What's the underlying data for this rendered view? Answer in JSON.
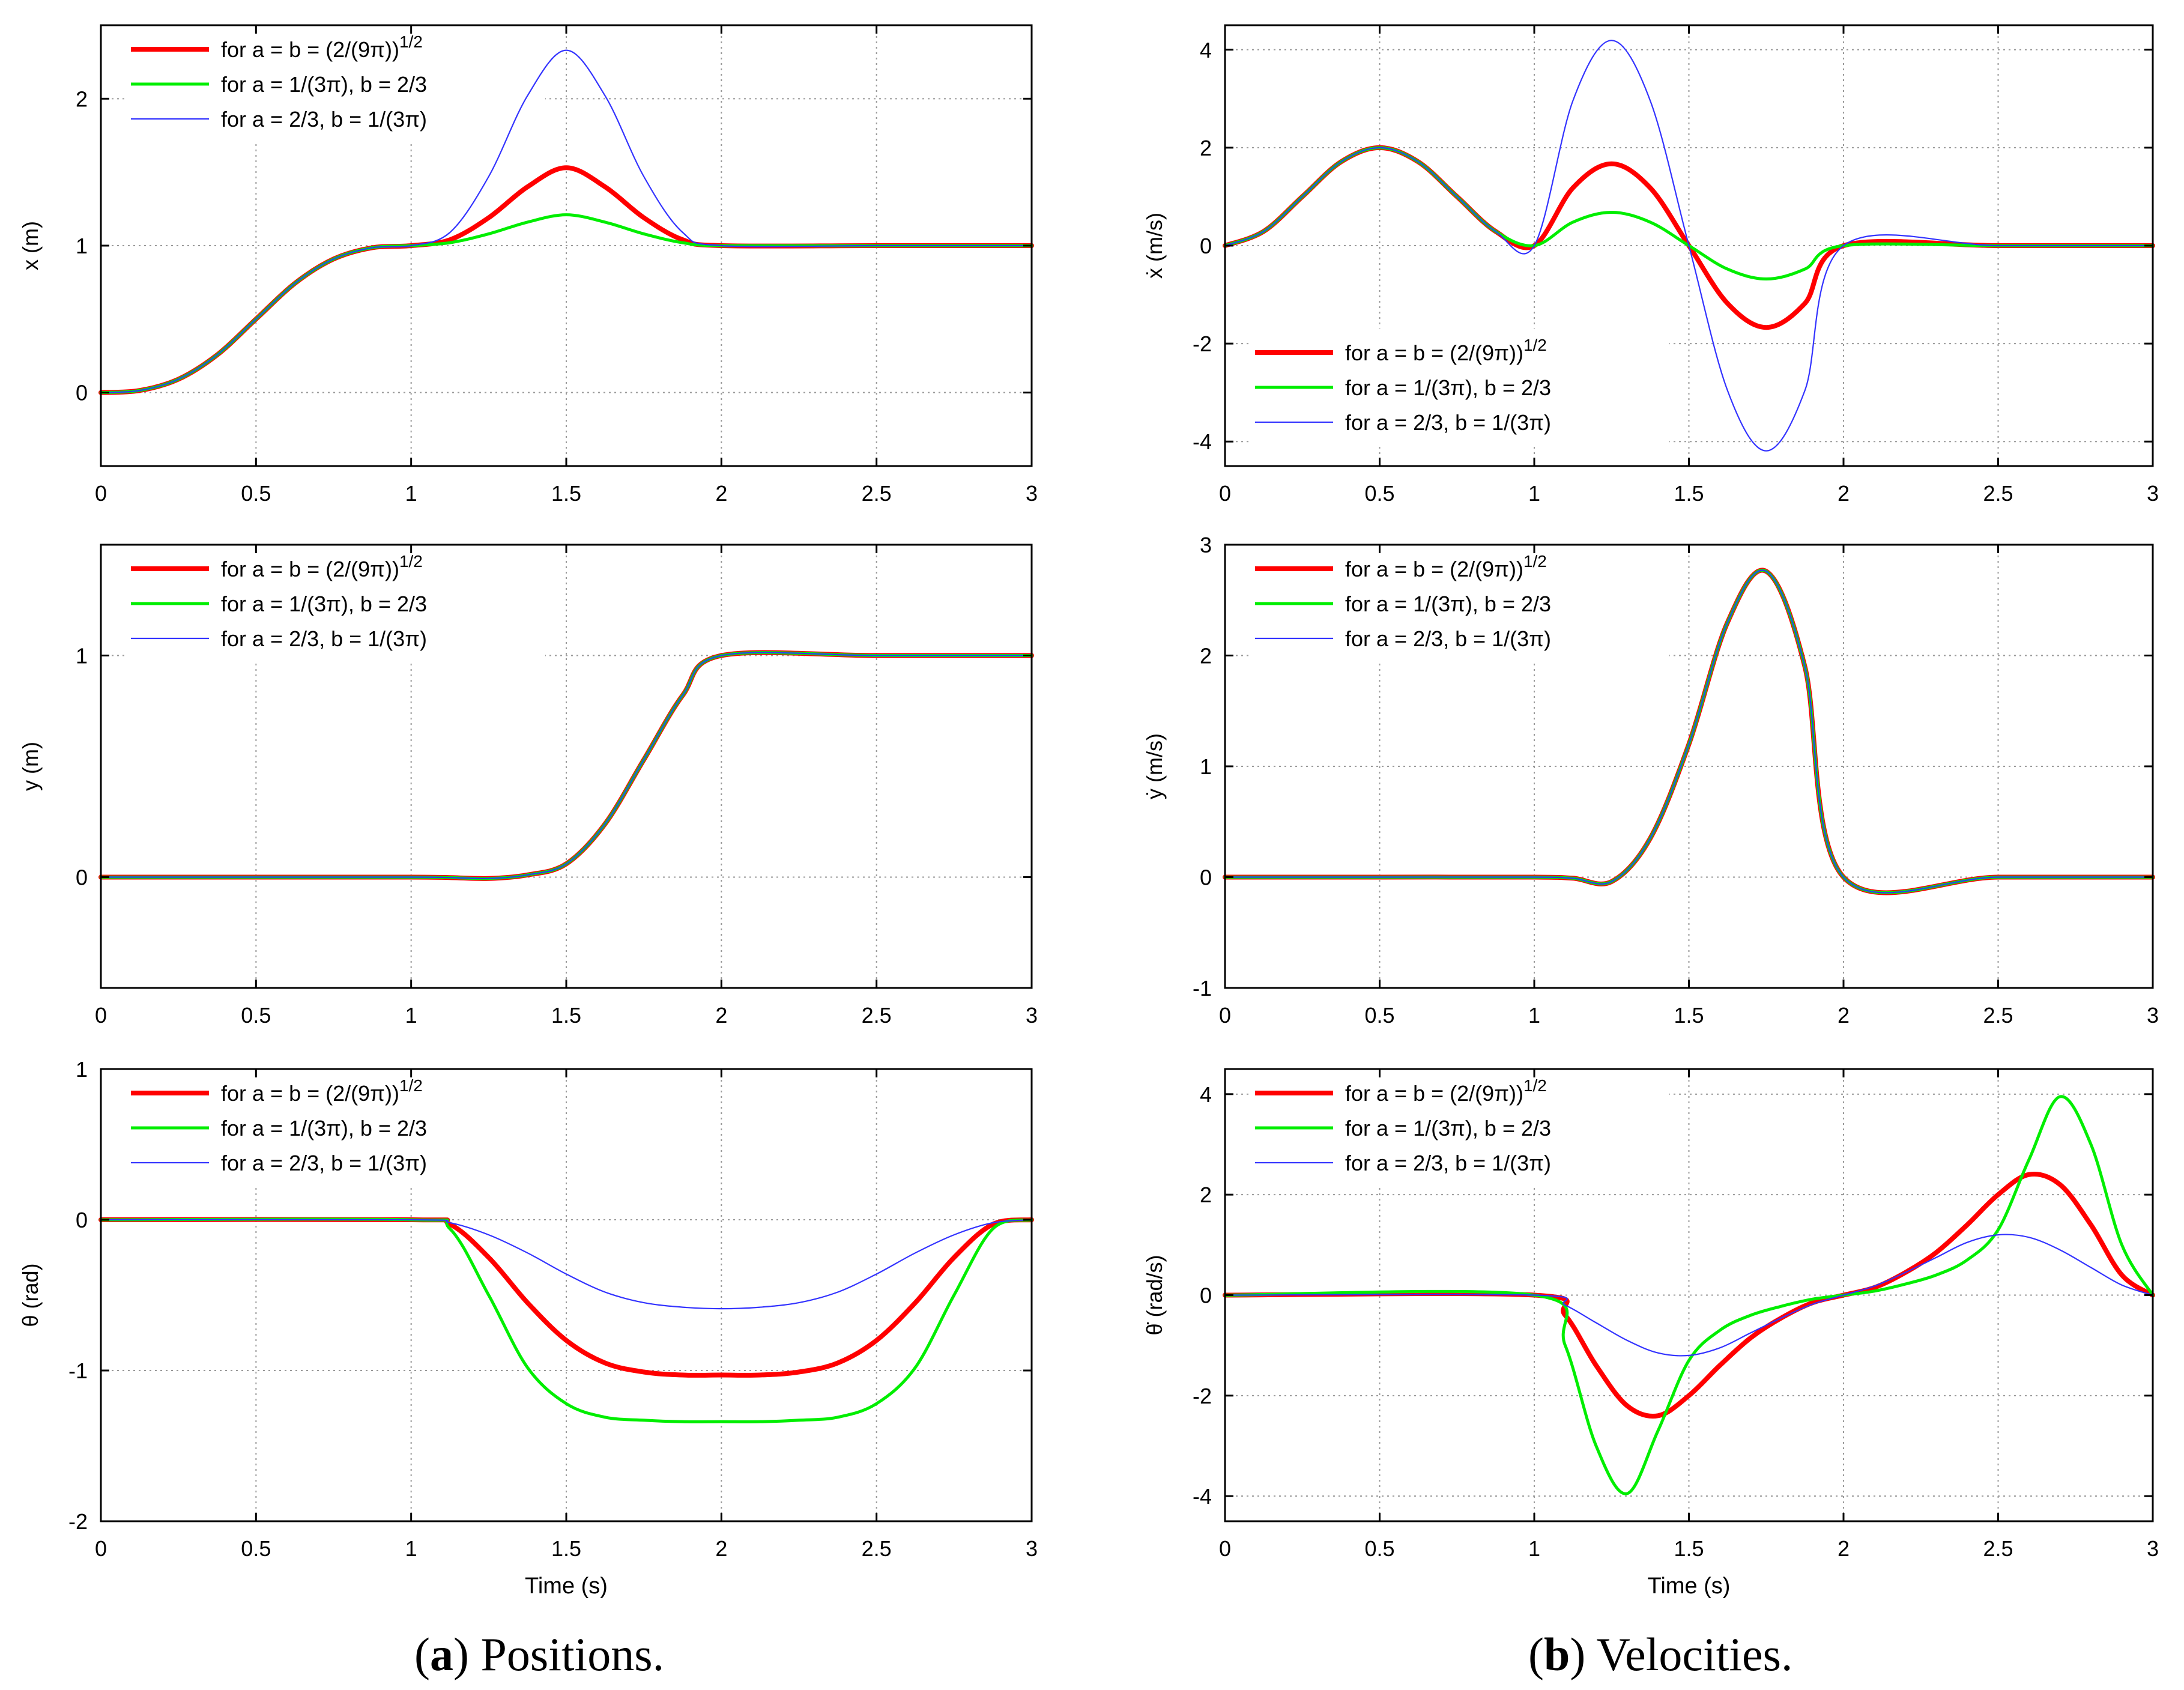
{
  "captions": {
    "a": {
      "label": "a",
      "text": "Positions."
    },
    "b": {
      "label": "b",
      "text": "Velocities."
    }
  },
  "legend": {
    "entries": [
      {
        "text": "for a = b = (2/(9π))",
        "sup": "1/2",
        "color": "#ff0000",
        "width": "thick"
      },
      {
        "text": "for a = 1/(3π), b = 2/3",
        "sup": "",
        "color": "#00ee00",
        "width": "medium"
      },
      {
        "text": "for a = 2/3, b = 1/(3π)",
        "sup": "",
        "color": "#3333ff",
        "width": "thin"
      }
    ]
  },
  "chart_data": [
    {
      "id": "x-position",
      "type": "line",
      "ylabel": "x (m)",
      "xlabel": "",
      "xlim": [
        0,
        3
      ],
      "ylim": [
        -0.5,
        2.5
      ],
      "xticks": [
        0,
        0.5,
        1,
        1.5,
        2,
        2.5,
        3
      ],
      "xtick_labels": [
        "0",
        "0.5",
        "1",
        "1.5",
        "2",
        "2.5",
        "3"
      ],
      "yticks": [
        0,
        1,
        2
      ],
      "ytick_labels": [
        "0",
        "1",
        "2"
      ],
      "grid": true,
      "legend_position": "top-left",
      "x": [
        0,
        0.125,
        0.25,
        0.375,
        0.5,
        0.625,
        0.75,
        0.875,
        1,
        1.125,
        1.25,
        1.375,
        1.5,
        1.625,
        1.75,
        1.875,
        2,
        2.5,
        3
      ],
      "series": [
        {
          "name": "for a = b = (2/(9π))^1/2",
          "values": [
            0,
            0.014,
            0.091,
            0.257,
            0.5,
            0.743,
            0.909,
            0.986,
            1,
            1.04,
            1.19,
            1.4,
            1.53,
            1.4,
            1.19,
            1.04,
            1,
            1,
            1
          ]
        },
        {
          "name": "for a = 1/(3π), b = 2/3",
          "values": [
            0,
            0.014,
            0.091,
            0.257,
            0.5,
            0.743,
            0.909,
            0.986,
            1,
            1.02,
            1.08,
            1.16,
            1.21,
            1.16,
            1.08,
            1.02,
            1,
            1,
            1
          ]
        },
        {
          "name": "for a = 2/3, b = 1/(3π)",
          "values": [
            0,
            0.014,
            0.091,
            0.257,
            0.5,
            0.743,
            0.909,
            0.986,
            1,
            1.09,
            1.47,
            2.02,
            2.33,
            2.02,
            1.47,
            1.09,
            1,
            1,
            1
          ]
        }
      ]
    },
    {
      "id": "x-velocity",
      "type": "line",
      "ylabel": "ẋ (m/s)",
      "xlabel": "",
      "xlim": [
        0,
        3
      ],
      "ylim": [
        -4.5,
        4.5
      ],
      "xticks": [
        0,
        0.5,
        1,
        1.5,
        2,
        2.5,
        3
      ],
      "xtick_labels": [
        "0",
        "0.5",
        "1",
        "1.5",
        "2",
        "2.5",
        "3"
      ],
      "yticks": [
        -4,
        -2,
        0,
        2,
        4
      ],
      "ytick_labels": [
        "-4",
        "-2",
        "0",
        "2",
        "4"
      ],
      "grid": true,
      "legend_position": "bottom-left",
      "x": [
        0,
        0.125,
        0.25,
        0.375,
        0.5,
        0.625,
        0.75,
        0.875,
        1,
        1.125,
        1.25,
        1.375,
        1.5,
        1.625,
        1.75,
        1.875,
        2,
        2.5,
        3
      ],
      "series": [
        {
          "name": "for a = b = (2/(9π))^1/2",
          "values": [
            0,
            0.29,
            1.0,
            1.71,
            2.0,
            1.71,
            1.0,
            0.29,
            0,
            1.18,
            1.67,
            1.18,
            0,
            -1.18,
            -1.67,
            -1.18,
            0,
            0,
            0
          ]
        },
        {
          "name": "for a = 1/(3π), b = 2/3",
          "values": [
            0,
            0.29,
            1.0,
            1.71,
            2.0,
            1.71,
            1.0,
            0.29,
            0,
            0.48,
            0.68,
            0.48,
            0,
            -0.48,
            -0.68,
            -0.48,
            0,
            0,
            0
          ]
        },
        {
          "name": "for a = 2/3, b = 1/(3π)",
          "values": [
            0,
            0.29,
            1.0,
            1.71,
            2.0,
            1.71,
            1.0,
            0.29,
            0,
            2.96,
            4.19,
            2.96,
            0,
            -2.96,
            -4.19,
            -2.96,
            0,
            0,
            0
          ]
        }
      ]
    },
    {
      "id": "y-position",
      "type": "line",
      "ylabel": "y (m)",
      "xlabel": "",
      "xlim": [
        0,
        3
      ],
      "ylim": [
        -0.5,
        1.5
      ],
      "xticks": [
        0,
        0.5,
        1,
        1.5,
        2,
        2.5,
        3
      ],
      "xtick_labels": [
        "0",
        "0.5",
        "1",
        "1.5",
        "2",
        "2.5",
        "3"
      ],
      "yticks": [
        0,
        1
      ],
      "ytick_labels": [
        "0",
        "1"
      ],
      "grid": true,
      "legend_position": "top-left",
      "x": [
        0,
        0.5,
        1,
        1.125,
        1.25,
        1.375,
        1.5,
        1.625,
        1.75,
        1.875,
        2,
        2.5,
        3
      ],
      "series": [
        {
          "name": "for a = b = (2/(9π))^1/2",
          "values": [
            0,
            0,
            0,
            -0.002,
            -0.006,
            0.01,
            0.06,
            0.24,
            0.53,
            0.82,
            1,
            1,
            1
          ]
        },
        {
          "name": "for a = 1/(3π), b = 2/3",
          "values": [
            0,
            0,
            0,
            -0.002,
            -0.006,
            0.01,
            0.06,
            0.24,
            0.53,
            0.82,
            1,
            1,
            1
          ]
        },
        {
          "name": "for a = 2/3, b = 1/(3π)",
          "values": [
            0,
            0,
            0,
            -0.002,
            -0.006,
            0.01,
            0.06,
            0.24,
            0.53,
            0.82,
            1,
            1,
            1
          ]
        }
      ]
    },
    {
      "id": "y-velocity",
      "type": "line",
      "ylabel": "ẏ (m/s)",
      "xlabel": "",
      "xlim": [
        0,
        3
      ],
      "ylim": [
        -1,
        3
      ],
      "xticks": [
        0,
        0.5,
        1,
        1.5,
        2,
        2.5,
        3
      ],
      "xtick_labels": [
        "0",
        "0.5",
        "1",
        "1.5",
        "2",
        "2.5",
        "3"
      ],
      "yticks": [
        -1,
        0,
        1,
        2,
        3
      ],
      "ytick_labels": [
        "-1",
        "0",
        "1",
        "2",
        "3"
      ],
      "grid": true,
      "legend_position": "top-left",
      "x": [
        0,
        0.5,
        1,
        1.125,
        1.25,
        1.375,
        1.5,
        1.625,
        1.75,
        1.875,
        2,
        2.5,
        3
      ],
      "series": [
        {
          "name": "for a = b = (2/(9π))^1/2",
          "values": [
            0,
            0,
            0,
            -0.01,
            -0.04,
            0.35,
            1.2,
            2.3,
            2.76,
            1.9,
            0,
            0,
            0
          ]
        },
        {
          "name": "for a = 1/(3π), b = 2/3",
          "values": [
            0,
            0,
            0,
            -0.01,
            -0.04,
            0.35,
            1.2,
            2.3,
            2.76,
            1.9,
            0,
            0,
            0
          ]
        },
        {
          "name": "for a = 2/3, b = 1/(3π)",
          "values": [
            0,
            0,
            0,
            -0.01,
            -0.04,
            0.35,
            1.2,
            2.3,
            2.76,
            1.9,
            0,
            0,
            0
          ]
        }
      ]
    },
    {
      "id": "theta-position",
      "type": "line",
      "ylabel": "θ (rad)",
      "xlabel": "Time (s)",
      "xlim": [
        0,
        3
      ],
      "ylim": [
        -2,
        1
      ],
      "xticks": [
        0,
        0.5,
        1,
        1.5,
        2,
        2.5,
        3
      ],
      "xtick_labels": [
        "0",
        "0.5",
        "1",
        "1.5",
        "2",
        "2.5",
        "3"
      ],
      "yticks": [
        -2,
        -1,
        0,
        1
      ],
      "ytick_labels": [
        "-2",
        "-1",
        "0",
        "1"
      ],
      "grid": true,
      "legend_position": "top-left",
      "x": [
        0,
        1,
        1.125,
        1.25,
        1.375,
        1.5,
        1.625,
        1.75,
        1.875,
        2,
        2.125,
        2.25,
        2.375,
        2.5,
        2.625,
        2.75,
        2.875,
        3
      ],
      "series": [
        {
          "name": "for a = b = (2/(9π))^1/2",
          "values": [
            0,
            0,
            -0.03,
            -0.25,
            -0.55,
            -0.8,
            -0.95,
            -1.01,
            -1.03,
            -1.03,
            -1.03,
            -1.01,
            -0.95,
            -0.8,
            -0.55,
            -0.25,
            -0.03,
            0
          ]
        },
        {
          "name": "for a = 1/(3π), b = 2/3",
          "values": [
            0,
            0,
            -0.06,
            -0.5,
            -0.98,
            -1.22,
            -1.31,
            -1.33,
            -1.34,
            -1.34,
            -1.34,
            -1.33,
            -1.31,
            -1.22,
            -0.98,
            -0.5,
            -0.06,
            0
          ]
        },
        {
          "name": "for a = 2/3, b = 1/(3π)",
          "values": [
            0,
            0,
            -0.02,
            -0.1,
            -0.22,
            -0.36,
            -0.48,
            -0.55,
            -0.58,
            -0.59,
            -0.58,
            -0.55,
            -0.48,
            -0.36,
            -0.22,
            -0.1,
            -0.02,
            0
          ]
        }
      ]
    },
    {
      "id": "theta-velocity",
      "type": "line",
      "ylabel": "θ̇ (rad/s)",
      "xlabel": "Time (s)",
      "xlim": [
        0,
        3
      ],
      "ylim": [
        -4.5,
        4.5
      ],
      "xticks": [
        0,
        0.5,
        1,
        1.5,
        2,
        2.5,
        3
      ],
      "xtick_labels": [
        "0",
        "0.5",
        "1",
        "1.5",
        "2",
        "2.5",
        "3"
      ],
      "yticks": [
        -4,
        -2,
        0,
        2,
        4
      ],
      "ytick_labels": [
        "-4",
        "-2",
        "0",
        "2",
        "4"
      ],
      "grid": true,
      "legend_position": "top-left",
      "x": [
        0,
        1,
        1.1,
        1.2,
        1.3,
        1.4,
        1.5,
        1.6,
        1.7,
        1.8,
        1.9,
        2,
        2.1,
        2.2,
        2.3,
        2.4,
        2.5,
        2.6,
        2.7,
        2.8,
        2.9,
        3
      ],
      "series": [
        {
          "name": "for a = b = (2/(9π))^1/2",
          "values": [
            0,
            0,
            -0.4,
            -1.4,
            -2.2,
            -2.4,
            -2.0,
            -1.4,
            -0.85,
            -0.45,
            -0.15,
            0,
            0.15,
            0.45,
            0.85,
            1.4,
            2.0,
            2.4,
            2.2,
            1.4,
            0.4,
            0
          ]
        },
        {
          "name": "for a = 1/(3π), b = 2/3",
          "values": [
            0,
            0,
            -1.0,
            -3.0,
            -3.95,
            -2.7,
            -1.3,
            -0.7,
            -0.4,
            -0.22,
            -0.08,
            0,
            0.08,
            0.22,
            0.4,
            0.7,
            1.3,
            2.7,
            3.95,
            3.0,
            1.0,
            0
          ]
        },
        {
          "name": "for a = 2/3, b = 1/(3π)",
          "values": [
            0,
            0,
            -0.2,
            -0.55,
            -0.9,
            -1.15,
            -1.2,
            -1.05,
            -0.75,
            -0.45,
            -0.18,
            0,
            0.18,
            0.45,
            0.75,
            1.05,
            1.2,
            1.15,
            0.9,
            0.55,
            0.2,
            0
          ]
        }
      ]
    }
  ]
}
